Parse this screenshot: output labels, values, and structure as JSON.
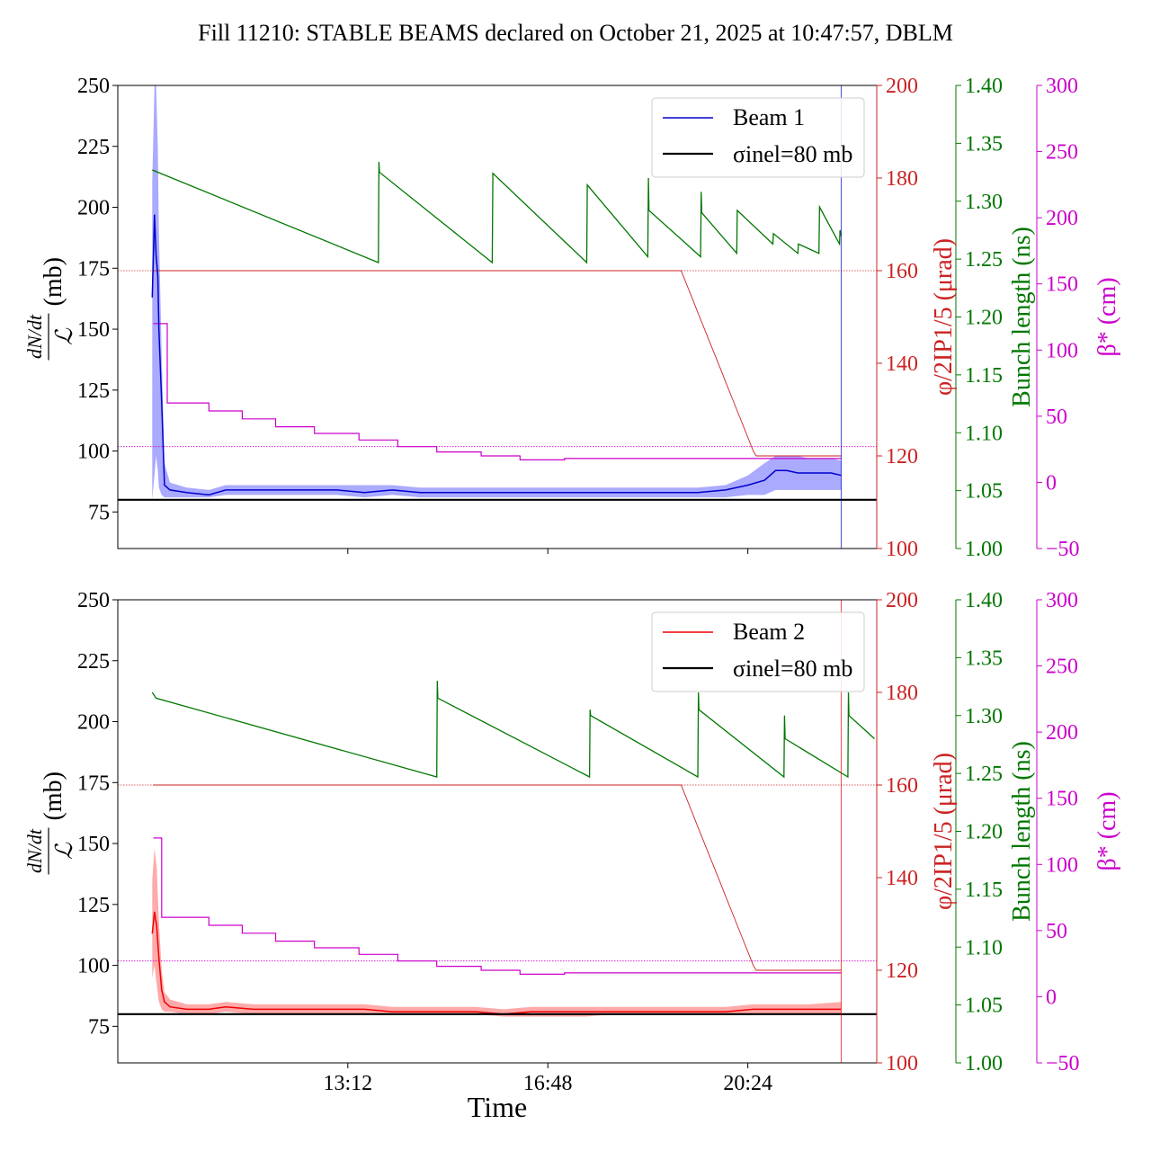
{
  "title": "Fill 11210: STABLE BEAMS declared on October 21, 2025 at 10:47:57, DBLM",
  "xlabel": "Time",
  "x_ticks": [
    "13:12",
    "16:48",
    "20:24"
  ],
  "x_tick_hours": [
    13.2,
    16.8,
    20.4
  ],
  "x_range_hours": [
    9.06,
    22.72
  ],
  "colors": {
    "beam1": "#0000cc",
    "beam1_band": "#aaaaff",
    "beam2": "#ee0000",
    "beam2_band": "#ffaaaa",
    "crossing": "#cc2222",
    "bunch": "#007700",
    "beta": "#cc00cc",
    "reference": "#000000"
  },
  "chart_data": [
    {
      "type": "line",
      "panel": "top",
      "legend": [
        "Beam 1",
        "σinel=80 mb"
      ],
      "legend_position": "top-right",
      "cursor_hour": 22.08,
      "axes": {
        "left": {
          "label_num": "dN/dt",
          "label_den": "ℒ",
          "label_unit": "(mb)",
          "range": [
            60,
            250
          ],
          "ticks": [
            "75",
            "100",
            "125",
            "150",
            "175",
            "200",
            "225",
            "250"
          ]
        },
        "right1": {
          "label": "φ/2IP1/5 (μrad)",
          "range": [
            100,
            200
          ],
          "ticks": [
            "100",
            "120",
            "140",
            "160",
            "180",
            "200"
          ]
        },
        "right2": {
          "label": "Bunch length (ns)",
          "range": [
            1.0,
            1.4
          ],
          "ticks": [
            "1.00",
            "1.05",
            "1.10",
            "1.15",
            "1.20",
            "1.25",
            "1.30",
            "1.35",
            "1.40"
          ]
        },
        "right3": {
          "label": "β* (cm)",
          "range": [
            -50,
            300
          ],
          "ticks": [
            "−50",
            "0",
            "50",
            "100",
            "150",
            "200",
            "250",
            "300"
          ]
        }
      },
      "series": [
        {
          "name": "Beam 1",
          "axis": "left",
          "x": [
            9.68,
            9.72,
            9.75,
            9.78,
            9.8,
            9.85,
            9.9,
            10.0,
            10.3,
            10.7,
            11.0,
            11.5,
            12.0,
            12.5,
            13.0,
            13.5,
            14.0,
            14.5,
            15.0,
            15.5,
            16.0,
            16.5,
            17.0,
            17.5,
            18.0,
            18.5,
            19.0,
            19.5,
            20.0,
            20.4,
            20.7,
            20.9,
            21.1,
            21.3,
            21.5,
            21.7,
            21.9,
            22.08
          ],
          "y": [
            163,
            197,
            180,
            172,
            150,
            120,
            86,
            84,
            83,
            82,
            84,
            84,
            84,
            84,
            84,
            83,
            84,
            83,
            83,
            83,
            83,
            83,
            83,
            83,
            83,
            83,
            83,
            83,
            84,
            86,
            88,
            92,
            92,
            91,
            91,
            91,
            91,
            90
          ]
        },
        {
          "name": "Beam 1 band low",
          "axis": "left",
          "x": [
            9.68,
            9.72,
            9.75,
            9.78,
            9.8,
            9.85,
            9.9,
            10.0,
            10.3,
            10.7,
            11.0,
            11.5,
            12.0,
            12.5,
            13.0,
            13.5,
            14.0,
            14.5,
            15.0,
            15.5,
            16.0,
            16.5,
            17.0,
            17.5,
            18.0,
            18.5,
            19.0,
            19.5,
            20.0,
            20.4,
            20.7,
            20.9,
            21.1,
            21.3,
            21.5,
            21.7,
            21.9,
            22.08
          ],
          "y": [
            80,
            90,
            98,
            92,
            85,
            82,
            81,
            81,
            81,
            81,
            82,
            82,
            82,
            82,
            82,
            81,
            82,
            81,
            81,
            81,
            81,
            81,
            81,
            81,
            81,
            81,
            81,
            81,
            81,
            82,
            82,
            84,
            84,
            84,
            84,
            84,
            84,
            84
          ]
        },
        {
          "name": "Beam 1 band high",
          "axis": "left",
          "x": [
            9.68,
            9.72,
            9.75,
            9.78,
            9.8,
            9.85,
            9.9,
            10.0,
            10.3,
            10.7,
            11.0,
            11.5,
            12.0,
            12.5,
            13.0,
            13.5,
            14.0,
            14.5,
            15.0,
            15.5,
            16.0,
            16.5,
            17.0,
            17.5,
            18.0,
            18.5,
            19.0,
            19.5,
            20.0,
            20.4,
            20.7,
            20.9,
            21.1,
            21.3,
            21.5,
            21.7,
            21.9,
            22.08
          ],
          "y": [
            210,
            250,
            250,
            225,
            190,
            140,
            95,
            87,
            85,
            84,
            86,
            86,
            86,
            86,
            86,
            86,
            86,
            85,
            85,
            85,
            85,
            85,
            85,
            85,
            85,
            85,
            85,
            85,
            86,
            90,
            95,
            98,
            98,
            98,
            97,
            97,
            97,
            96
          ]
        },
        {
          "name": "σinel=80 mb",
          "axis": "left",
          "x": [
            9.06,
            22.72
          ],
          "y": [
            80,
            80
          ]
        },
        {
          "name": "Crossing angle",
          "axis": "right1",
          "x": [
            9.7,
            19.2,
            19.3,
            19.4,
            19.5,
            19.6,
            19.7,
            19.8,
            19.9,
            20.0,
            20.1,
            20.2,
            20.3,
            20.4,
            20.5,
            20.55,
            22.08
          ],
          "y": [
            160,
            160,
            157,
            154,
            151,
            148,
            145,
            142,
            139,
            136,
            133,
            130,
            127,
            124,
            121,
            120,
            120
          ]
        },
        {
          "name": "Bunch length",
          "axis": "right2",
          "x": [
            9.68,
            13.75,
            13.76,
            13.77,
            15.8,
            15.81,
            17.5,
            17.51,
            18.6,
            18.61,
            18.62,
            19.55,
            19.56,
            19.57,
            20.2,
            20.21,
            20.85,
            20.86,
            21.3,
            21.31,
            21.68,
            21.69,
            22.05,
            22.06,
            22.08
          ],
          "y": [
            1.327,
            1.247,
            1.334,
            1.325,
            1.247,
            1.324,
            1.247,
            1.314,
            1.252,
            1.32,
            1.292,
            1.252,
            1.308,
            1.29,
            1.255,
            1.292,
            1.263,
            1.272,
            1.255,
            1.263,
            1.255,
            1.295,
            1.263,
            1.275,
            1.27
          ]
        },
        {
          "name": "β*",
          "axis": "right3",
          "x": [
            9.7,
            9.95,
            9.95,
            10.7,
            10.7,
            11.3,
            11.3,
            11.9,
            11.9,
            12.6,
            12.6,
            13.4,
            13.4,
            14.1,
            14.1,
            14.8,
            14.8,
            15.6,
            15.6,
            16.3,
            16.3,
            17.1,
            17.1,
            22.08
          ],
          "y": [
            120,
            120,
            60,
            60,
            54,
            54,
            48,
            48,
            42,
            42,
            37,
            37,
            32,
            32,
            27,
            27,
            23,
            23,
            20,
            20,
            17,
            17,
            18,
            18
          ]
        }
      ]
    },
    {
      "type": "line",
      "panel": "bottom",
      "legend": [
        "Beam 2",
        "σinel=80 mb"
      ],
      "legend_position": "top-right",
      "cursor_hour": 22.08,
      "axes": {
        "left": {
          "label_num": "dN/dt",
          "label_den": "ℒ",
          "label_unit": "(mb)",
          "range": [
            60,
            250
          ],
          "ticks": [
            "75",
            "100",
            "125",
            "150",
            "175",
            "200",
            "225",
            "250"
          ]
        },
        "right1": {
          "label": "φ/2IP1/5 (μrad)",
          "range": [
            100,
            200
          ],
          "ticks": [
            "100",
            "120",
            "140",
            "160",
            "180",
            "200"
          ]
        },
        "right2": {
          "label": "Bunch length (ns)",
          "range": [
            1.0,
            1.4
          ],
          "ticks": [
            "1.00",
            "1.05",
            "1.10",
            "1.15",
            "1.20",
            "1.25",
            "1.30",
            "1.35",
            "1.40"
          ]
        },
        "right3": {
          "label": "β* (cm)",
          "range": [
            -50,
            300
          ],
          "ticks": [
            "−50",
            "0",
            "50",
            "100",
            "150",
            "200",
            "250",
            "300"
          ]
        }
      },
      "series": [
        {
          "name": "Beam 2",
          "axis": "left",
          "x": [
            9.68,
            9.72,
            9.76,
            9.8,
            9.85,
            9.9,
            10.0,
            10.3,
            10.7,
            11.0,
            11.5,
            12.0,
            12.5,
            13.0,
            13.5,
            14.0,
            14.5,
            15.0,
            15.5,
            16.0,
            16.5,
            17.0,
            17.5,
            18.0,
            18.5,
            19.0,
            19.5,
            20.0,
            20.5,
            21.0,
            21.5,
            22.08
          ],
          "y": [
            113,
            122,
            116,
            103,
            90,
            85,
            83,
            82,
            82,
            83,
            82,
            82,
            82,
            82,
            82,
            81,
            81,
            81,
            81,
            80,
            81,
            81,
            81,
            81,
            81,
            81,
            81,
            81,
            82,
            82,
            82,
            82
          ]
        },
        {
          "name": "Beam 2 band low",
          "axis": "left",
          "x": [
            9.68,
            9.72,
            9.76,
            9.8,
            9.85,
            9.9,
            10.0,
            10.3,
            10.7,
            11.0,
            11.5,
            12.0,
            12.5,
            13.0,
            13.5,
            14.0,
            14.5,
            15.0,
            15.5,
            16.0,
            16.5,
            17.0,
            17.5,
            18.0,
            18.5,
            19.0,
            19.5,
            20.0,
            20.5,
            21.0,
            21.5,
            22.08
          ],
          "y": [
            95,
            100,
            92,
            85,
            82,
            81,
            81,
            80,
            80,
            81,
            80,
            80,
            80,
            80,
            80,
            80,
            80,
            80,
            80,
            79,
            79,
            79,
            79,
            80,
            80,
            80,
            80,
            80,
            80,
            80,
            80,
            80
          ]
        },
        {
          "name": "Beam 2 band high",
          "axis": "left",
          "x": [
            9.68,
            9.72,
            9.76,
            9.8,
            9.85,
            9.9,
            10.0,
            10.3,
            10.7,
            11.0,
            11.5,
            12.0,
            12.5,
            13.0,
            13.5,
            14.0,
            14.5,
            15.0,
            15.5,
            16.0,
            16.5,
            17.0,
            17.5,
            18.0,
            18.5,
            19.0,
            19.5,
            20.0,
            20.5,
            21.0,
            21.5,
            22.08
          ],
          "y": [
            135,
            148,
            140,
            118,
            98,
            89,
            86,
            84,
            84,
            85,
            84,
            84,
            84,
            84,
            84,
            83,
            83,
            83,
            83,
            82,
            83,
            83,
            83,
            83,
            83,
            83,
            83,
            83,
            84,
            84,
            84,
            85
          ]
        },
        {
          "name": "σinel=80 mb",
          "axis": "left",
          "x": [
            9.06,
            22.72
          ],
          "y": [
            80,
            80
          ]
        },
        {
          "name": "Crossing angle",
          "axis": "right1",
          "x": [
            9.7,
            19.2,
            19.3,
            19.4,
            19.5,
            19.6,
            19.7,
            19.8,
            19.9,
            20.0,
            20.1,
            20.2,
            20.3,
            20.4,
            20.5,
            20.55,
            22.08
          ],
          "y": [
            160,
            160,
            157,
            154,
            151,
            148,
            145,
            142,
            139,
            136,
            133,
            130,
            127,
            124,
            121,
            120,
            120
          ]
        },
        {
          "name": "Bunch length",
          "axis": "right2",
          "x": [
            9.68,
            9.75,
            14.8,
            14.81,
            14.82,
            17.55,
            17.56,
            17.57,
            19.5,
            19.51,
            19.52,
            21.05,
            21.06,
            21.07,
            22.2,
            22.21,
            22.22,
            22.68
          ],
          "y": [
            1.32,
            1.315,
            1.247,
            1.33,
            1.315,
            1.247,
            1.305,
            1.3,
            1.247,
            1.32,
            1.305,
            1.247,
            1.3,
            1.28,
            1.247,
            1.32,
            1.3,
            1.28
          ]
        },
        {
          "name": "β*",
          "axis": "right3",
          "x": [
            9.7,
            9.85,
            9.85,
            10.7,
            10.7,
            11.3,
            11.3,
            11.9,
            11.9,
            12.6,
            12.6,
            13.4,
            13.4,
            14.1,
            14.1,
            14.8,
            14.8,
            15.6,
            15.6,
            16.3,
            16.3,
            17.1,
            17.1,
            22.08
          ],
          "y": [
            120,
            120,
            60,
            60,
            54,
            54,
            48,
            48,
            42,
            42,
            37,
            37,
            32,
            32,
            27,
            27,
            23,
            23,
            20,
            20,
            17,
            17,
            18,
            18
          ]
        }
      ]
    }
  ]
}
